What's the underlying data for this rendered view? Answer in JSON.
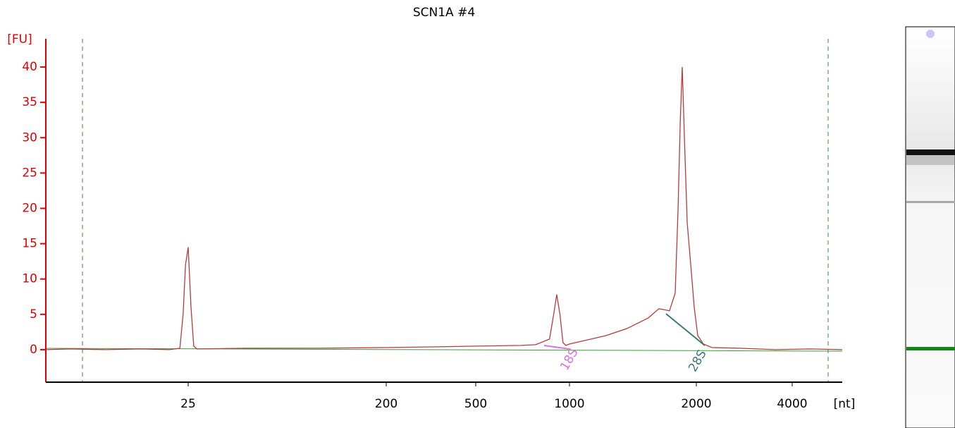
{
  "chart_data": {
    "type": "line",
    "title": "SCN1A #4",
    "ylabel": "[FU]",
    "xlabel": "[nt]",
    "color": "#b83a3a",
    "xlim": [
      5.6,
      5740
    ],
    "xticks": [
      25,
      200,
      500,
      1000,
      2000,
      4000
    ],
    "ylim": [
      -4.6,
      44
    ],
    "yticks": [
      0,
      5,
      10,
      15,
      20,
      25,
      30,
      35,
      40
    ],
    "annotations": [
      "18S",
      "28S"
    ],
    "series": [
      {
        "name": "SCN1A #4",
        "x": [
          5.6,
          7.3,
          10.5,
          15.2,
          20.5,
          22.9,
          23.7,
          24.3,
          25,
          25.75,
          26.5,
          27.4,
          46,
          97,
          200,
          336,
          500,
          701,
          778,
          863,
          890,
          910,
          932,
          953,
          974,
          1000,
          1088,
          1222,
          1371,
          1539,
          1630,
          1727,
          1782,
          1810,
          1831,
          1852,
          1874,
          1902,
          1940,
          1977,
          2020,
          2104,
          2238,
          2743,
          3536,
          4569,
          5740
        ],
        "values": [
          0,
          0.1,
          0,
          0.1,
          0,
          0.2,
          5,
          12,
          14.5,
          6,
          0.5,
          0.1,
          0.2,
          0.2,
          0.3,
          0.4,
          0.5,
          0.6,
          0.7,
          1.5,
          5,
          7.8,
          5,
          1,
          0.6,
          0.8,
          1.3,
          2,
          3,
          4.5,
          5.8,
          5.5,
          8,
          20,
          32,
          40,
          30,
          18,
          12,
          6,
          2,
          0.8,
          0.3,
          0.2,
          0,
          0.1,
          0
        ]
      }
    ]
  }
}
